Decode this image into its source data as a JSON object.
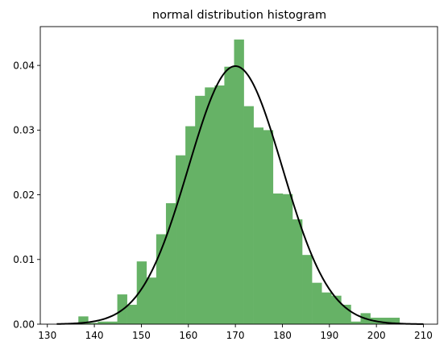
{
  "chart_data": {
    "type": "bar",
    "title": "normal distribution histogram",
    "xlabel": "",
    "ylabel": "",
    "xlim": [
      128.5,
      213
    ],
    "ylim": [
      0,
      0.046
    ],
    "grid": false,
    "legend": "none",
    "x_ticks": [
      130,
      140,
      150,
      160,
      170,
      180,
      190,
      200,
      210
    ],
    "y_ticks": [
      0.0,
      0.01,
      0.02,
      0.03,
      0.04
    ],
    "y_tick_labels": [
      "0.00",
      "0.01",
      "0.02",
      "0.03",
      "0.04"
    ],
    "histogram": {
      "color": "#66b266",
      "bin_width": 2.07,
      "bins": [
        {
          "x0": 136.6,
          "density": 0.0012
        },
        {
          "x0": 138.67,
          "density": 0.0002
        },
        {
          "x0": 140.74,
          "density": 0.0004
        },
        {
          "x0": 142.81,
          "density": 0.0004
        },
        {
          "x0": 144.88,
          "density": 0.0046
        },
        {
          "x0": 146.95,
          "density": 0.003
        },
        {
          "x0": 149.02,
          "density": 0.0097
        },
        {
          "x0": 151.09,
          "density": 0.0072
        },
        {
          "x0": 153.16,
          "density": 0.0139
        },
        {
          "x0": 155.23,
          "density": 0.0187
        },
        {
          "x0": 157.3,
          "density": 0.0261
        },
        {
          "x0": 159.37,
          "density": 0.0306
        },
        {
          "x0": 161.44,
          "density": 0.0353
        },
        {
          "x0": 163.51,
          "density": 0.0366
        },
        {
          "x0": 165.58,
          "density": 0.0369
        },
        {
          "x0": 167.65,
          "density": 0.0398
        },
        {
          "x0": 169.72,
          "density": 0.044
        },
        {
          "x0": 171.79,
          "density": 0.0337
        },
        {
          "x0": 173.86,
          "density": 0.0304
        },
        {
          "x0": 175.93,
          "density": 0.03
        },
        {
          "x0": 178.0,
          "density": 0.0202
        },
        {
          "x0": 180.07,
          "density": 0.0201
        },
        {
          "x0": 182.14,
          "density": 0.0162
        },
        {
          "x0": 184.21,
          "density": 0.0107
        },
        {
          "x0": 186.28,
          "density": 0.0064
        },
        {
          "x0": 188.35,
          "density": 0.0049
        },
        {
          "x0": 190.42,
          "density": 0.0044
        },
        {
          "x0": 192.49,
          "density": 0.003
        },
        {
          "x0": 194.56,
          "density": 0.0004
        },
        {
          "x0": 196.63,
          "density": 0.0017
        },
        {
          "x0": 198.7,
          "density": 0.001
        },
        {
          "x0": 200.77,
          "density": 0.001
        },
        {
          "x0": 202.84,
          "density": 0.001
        },
        {
          "x0": 204.91,
          "density": 0.0
        }
      ]
    },
    "curve": {
      "type": "line",
      "color": "#000000",
      "distribution": "normal",
      "mean": 170,
      "std": 10,
      "x_range": [
        132,
        210
      ]
    }
  }
}
